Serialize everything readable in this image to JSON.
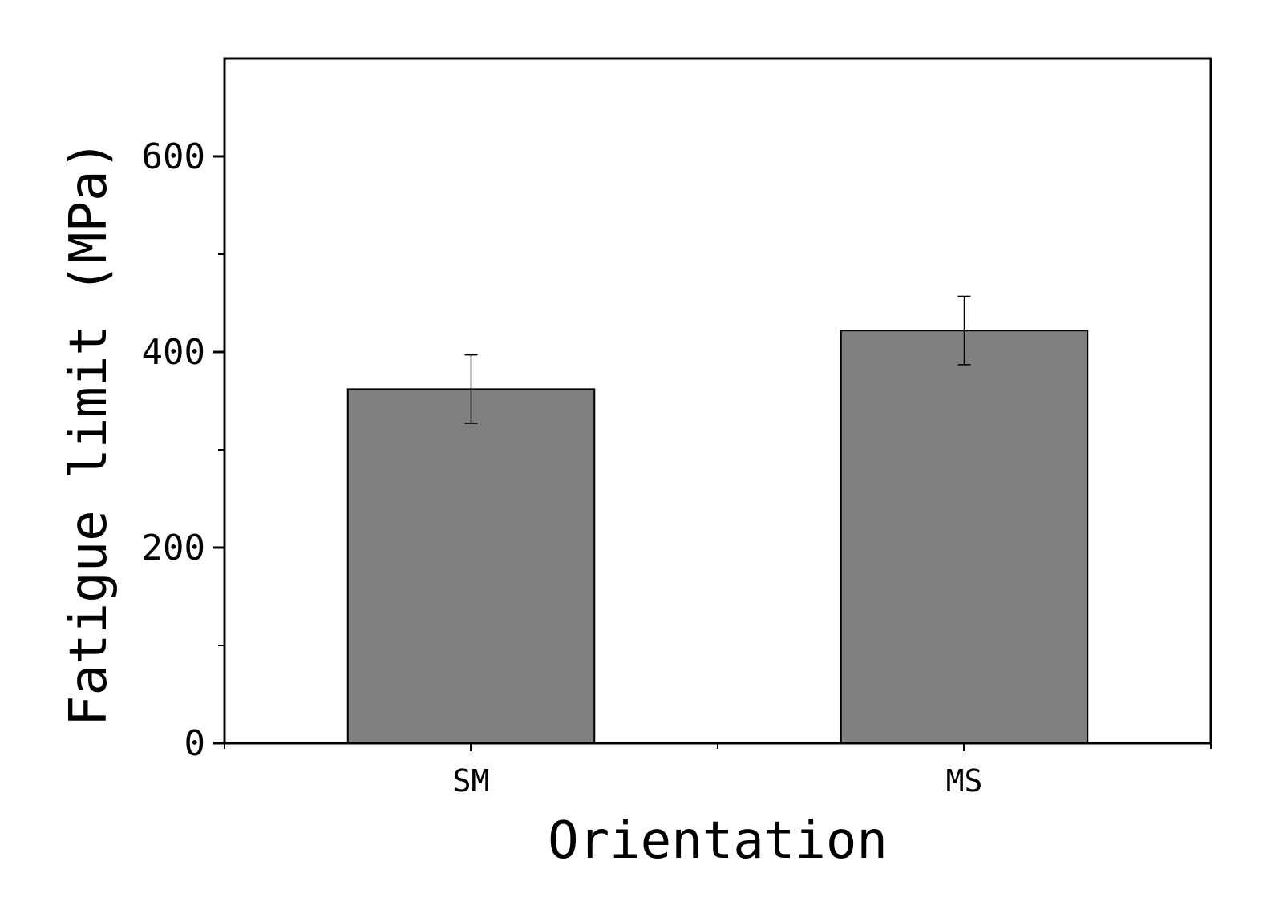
{
  "chart_data": {
    "type": "bar",
    "title": "",
    "xlabel": "Orientation",
    "ylabel": "Fatigue limit (MPa)",
    "categories": [
      "SM",
      "MS"
    ],
    "values": [
      362,
      422
    ],
    "errors": [
      35,
      35
    ],
    "ylim": [
      0,
      700
    ],
    "yticks": [
      0,
      200,
      400,
      600
    ],
    "yticks_minor": [
      100,
      300,
      500
    ],
    "grid": false,
    "legend": "none",
    "colors": {
      "bar_fill": "#808080",
      "bar_stroke": "#000000"
    }
  }
}
